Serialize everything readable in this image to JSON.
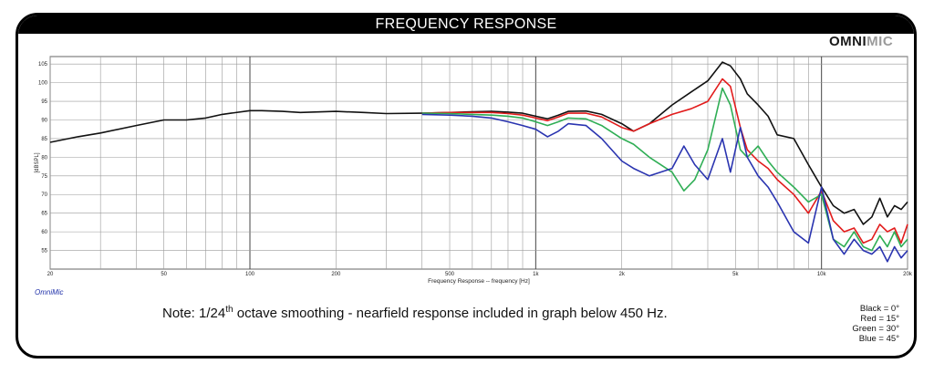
{
  "header": {
    "title": "FREQUENCY RESPONSE"
  },
  "logo": {
    "part1": "OMNI",
    "part2": "MIC"
  },
  "brand_small": "OmniMic",
  "note": {
    "prefix": "Note: 1/24",
    "superscript": "th",
    "suffix": " octave smoothing - nearfield response included in graph below 450 Hz."
  },
  "legend": [
    "Black = 0°",
    "Red = 15°",
    "Green = 30°",
    "Blue = 45°"
  ],
  "colors": {
    "black": "#111111",
    "red": "#e21b1b",
    "green": "#2fae55",
    "blue": "#2a34b0",
    "grid": "#9a9a9a"
  },
  "chart_data": {
    "type": "line",
    "xlabel": "Frequency Response -- frequency [Hz]",
    "ylabel": "[dBSPL]",
    "xscale": "log",
    "xlim": [
      20,
      20000
    ],
    "ylim": [
      50,
      107
    ],
    "grid": true,
    "x_tick_labels": [
      {
        "v": 20,
        "t": "20"
      },
      {
        "v": 50,
        "t": "50"
      },
      {
        "v": 100,
        "t": "100"
      },
      {
        "v": 200,
        "t": "200"
      },
      {
        "v": 500,
        "t": "500"
      },
      {
        "v": 1000,
        "t": "1k"
      },
      {
        "v": 2000,
        "t": "2k"
      },
      {
        "v": 5000,
        "t": "5k"
      },
      {
        "v": 10000,
        "t": "10k"
      },
      {
        "v": 20000,
        "t": "20k"
      }
    ],
    "y_ticks": [
      55,
      60,
      65,
      70,
      75,
      80,
      85,
      90,
      95,
      100,
      105
    ],
    "series": [
      {
        "name": "Black = 0°",
        "color": "#111111",
        "points": [
          [
            20,
            84
          ],
          [
            25,
            85.5
          ],
          [
            30,
            86.5
          ],
          [
            40,
            88.5
          ],
          [
            50,
            90
          ],
          [
            60,
            90
          ],
          [
            70,
            90.5
          ],
          [
            80,
            91.5
          ],
          [
            100,
            92.5
          ],
          [
            110,
            92.5
          ],
          [
            130,
            92.3
          ],
          [
            150,
            92
          ],
          [
            200,
            92.3
          ],
          [
            250,
            92
          ],
          [
            300,
            91.7
          ],
          [
            400,
            91.8
          ],
          [
            500,
            92
          ],
          [
            600,
            92.2
          ],
          [
            700,
            92.3
          ],
          [
            800,
            92.1
          ],
          [
            900,
            91.8
          ],
          [
            1000,
            91
          ],
          [
            1100,
            90.3
          ],
          [
            1200,
            91.3
          ],
          [
            1300,
            92.3
          ],
          [
            1500,
            92.4
          ],
          [
            1700,
            91.5
          ],
          [
            2000,
            89
          ],
          [
            2200,
            87
          ],
          [
            2500,
            89
          ],
          [
            3000,
            94
          ],
          [
            3500,
            97.5
          ],
          [
            4000,
            100.5
          ],
          [
            4500,
            105.5
          ],
          [
            4800,
            104.5
          ],
          [
            5200,
            101
          ],
          [
            5500,
            97
          ],
          [
            6000,
            94
          ],
          [
            6500,
            91
          ],
          [
            7000,
            86
          ],
          [
            8000,
            85
          ],
          [
            9000,
            78
          ],
          [
            10000,
            72
          ],
          [
            11000,
            67
          ],
          [
            12000,
            65
          ],
          [
            13000,
            66
          ],
          [
            14000,
            62
          ],
          [
            15000,
            64
          ],
          [
            16000,
            69
          ],
          [
            17000,
            64
          ],
          [
            18000,
            67
          ],
          [
            19000,
            66
          ],
          [
            20000,
            68
          ]
        ]
      },
      {
        "name": "Red = 15°",
        "color": "#e21b1b",
        "points": [
          [
            400,
            91.8
          ],
          [
            500,
            92
          ],
          [
            600,
            92
          ],
          [
            700,
            92
          ],
          [
            800,
            91.7
          ],
          [
            900,
            91.3
          ],
          [
            1000,
            90.5
          ],
          [
            1100,
            89.8
          ],
          [
            1200,
            90.8
          ],
          [
            1300,
            91.8
          ],
          [
            1500,
            91.8
          ],
          [
            1700,
            90.8
          ],
          [
            2000,
            88
          ],
          [
            2200,
            87
          ],
          [
            2500,
            89
          ],
          [
            3000,
            91.5
          ],
          [
            3500,
            93
          ],
          [
            4000,
            95
          ],
          [
            4500,
            101
          ],
          [
            4800,
            99
          ],
          [
            5200,
            88
          ],
          [
            5500,
            82
          ],
          [
            6000,
            79
          ],
          [
            6500,
            77
          ],
          [
            7000,
            74
          ],
          [
            8000,
            70
          ],
          [
            9000,
            65
          ],
          [
            10000,
            71
          ],
          [
            11000,
            63
          ],
          [
            12000,
            60
          ],
          [
            13000,
            61
          ],
          [
            14000,
            57
          ],
          [
            15000,
            58
          ],
          [
            16000,
            62
          ],
          [
            17000,
            60
          ],
          [
            18000,
            61
          ],
          [
            19000,
            57
          ],
          [
            20000,
            62
          ]
        ]
      },
      {
        "name": "Green = 30°",
        "color": "#2fae55",
        "points": [
          [
            400,
            91.8
          ],
          [
            500,
            91.7
          ],
          [
            600,
            91.5
          ],
          [
            700,
            91.3
          ],
          [
            800,
            91
          ],
          [
            900,
            90.5
          ],
          [
            1000,
            89.5
          ],
          [
            1100,
            88.5
          ],
          [
            1200,
            89.5
          ],
          [
            1300,
            90.5
          ],
          [
            1500,
            90.3
          ],
          [
            1700,
            88.5
          ],
          [
            2000,
            85
          ],
          [
            2200,
            83.5
          ],
          [
            2500,
            80
          ],
          [
            3000,
            76
          ],
          [
            3300,
            71
          ],
          [
            3600,
            74
          ],
          [
            4000,
            82
          ],
          [
            4500,
            98.5
          ],
          [
            4800,
            94
          ],
          [
            5200,
            82
          ],
          [
            5500,
            80
          ],
          [
            6000,
            83
          ],
          [
            6500,
            79
          ],
          [
            7000,
            76
          ],
          [
            8000,
            72
          ],
          [
            9000,
            68
          ],
          [
            10000,
            70
          ],
          [
            11000,
            58
          ],
          [
            12000,
            56
          ],
          [
            13000,
            60
          ],
          [
            14000,
            56
          ],
          [
            15000,
            55
          ],
          [
            16000,
            59
          ],
          [
            17000,
            56
          ],
          [
            18000,
            60
          ],
          [
            19000,
            56
          ],
          [
            20000,
            58
          ]
        ]
      },
      {
        "name": "Blue = 45°",
        "color": "#2a34b0",
        "points": [
          [
            400,
            91.5
          ],
          [
            500,
            91.3
          ],
          [
            600,
            91
          ],
          [
            700,
            90.5
          ],
          [
            800,
            89.5
          ],
          [
            900,
            88.5
          ],
          [
            1000,
            87.5
          ],
          [
            1100,
            85.5
          ],
          [
            1200,
            87
          ],
          [
            1300,
            89
          ],
          [
            1500,
            88.5
          ],
          [
            1700,
            85
          ],
          [
            2000,
            79
          ],
          [
            2200,
            77
          ],
          [
            2500,
            75
          ],
          [
            3000,
            77
          ],
          [
            3300,
            83
          ],
          [
            3600,
            78
          ],
          [
            4000,
            74
          ],
          [
            4500,
            85
          ],
          [
            4800,
            76
          ],
          [
            5200,
            88
          ],
          [
            5500,
            80
          ],
          [
            6000,
            75
          ],
          [
            6500,
            72
          ],
          [
            7000,
            68
          ],
          [
            8000,
            60
          ],
          [
            9000,
            57
          ],
          [
            10000,
            72
          ],
          [
            11000,
            58
          ],
          [
            12000,
            54
          ],
          [
            13000,
            58
          ],
          [
            14000,
            55
          ],
          [
            15000,
            54
          ],
          [
            16000,
            56
          ],
          [
            17000,
            52
          ],
          [
            18000,
            56
          ],
          [
            19000,
            53
          ],
          [
            20000,
            55
          ]
        ]
      }
    ]
  }
}
